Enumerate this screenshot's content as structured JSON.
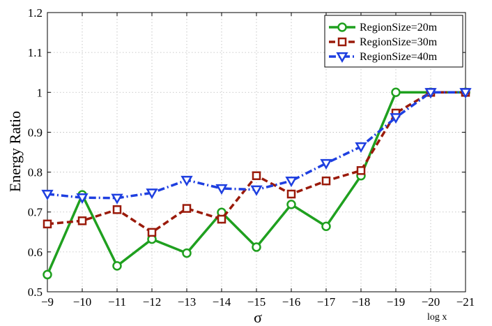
{
  "chart_data": {
    "type": "line",
    "x": [
      -9,
      -10,
      -11,
      -12,
      -13,
      -14,
      -15,
      -16,
      -17,
      -18,
      -19,
      -20,
      -21
    ],
    "x_tick_labels": [
      "−9",
      "−10",
      "−11",
      "−12",
      "−13",
      "−14",
      "−15",
      "−16",
      "−17",
      "−18",
      "−19",
      "−20",
      "−21"
    ],
    "xlabel": "σ",
    "x_note": "log x",
    "ylabel": "Energy Ratio",
    "ylim": [
      0.5,
      1.2
    ],
    "y_ticks": [
      0.5,
      0.6,
      0.7,
      0.8,
      0.9,
      1.0,
      1.1,
      1.2
    ],
    "y_tick_labels": [
      "0.5",
      "0.6",
      "0.7",
      "0.8",
      "0.9",
      "1",
      "1.1",
      "1.2"
    ],
    "grid": true,
    "legend_position": "top-right",
    "series": [
      {
        "name": "RegionSize=20m",
        "color": "#1fa01f",
        "marker": "circle",
        "line_style": "solid",
        "values": [
          0.543,
          0.743,
          0.565,
          0.632,
          0.597,
          0.699,
          0.612,
          0.719,
          0.664,
          0.791,
          1.0,
          1.0,
          1.0
        ]
      },
      {
        "name": "RegionSize=30m",
        "color": "#9a1a0a",
        "marker": "square",
        "line_style": "dashed",
        "values": [
          0.67,
          0.678,
          0.706,
          0.649,
          0.709,
          0.682,
          0.791,
          0.745,
          0.778,
          0.804,
          0.948,
          1.0,
          1.0
        ]
      },
      {
        "name": "RegionSize=40m",
        "color": "#1e3fe0",
        "marker": "triangle-down",
        "line_style": "dashdot",
        "values": [
          0.745,
          0.736,
          0.735,
          0.748,
          0.78,
          0.759,
          0.756,
          0.778,
          0.822,
          0.864,
          0.937,
          1.0,
          1.0
        ]
      }
    ]
  }
}
